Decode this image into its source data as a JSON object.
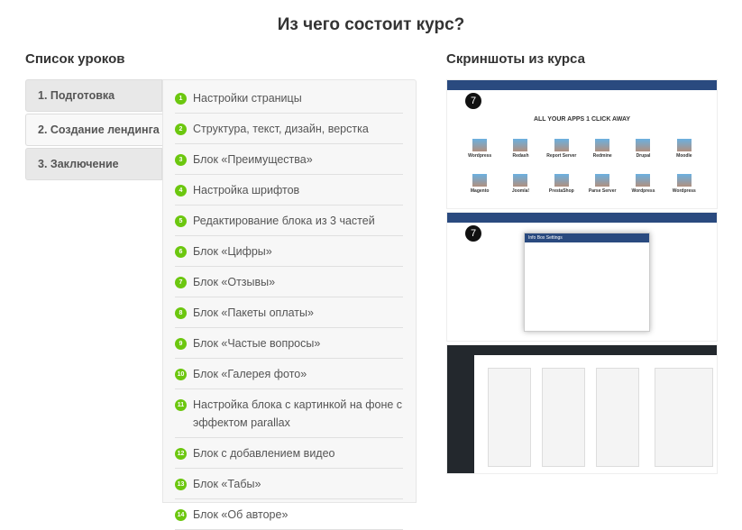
{
  "title": "Из чего состоит курс?",
  "lessons_heading": "Список уроков",
  "screens_heading": "Скриншоты из курса",
  "accent_color": "#6cc70f",
  "tabs": [
    {
      "label": "1. Подготовка",
      "active": false
    },
    {
      "label": "2. Создание лендинга",
      "active": true
    },
    {
      "label": "3. Заключение",
      "active": false
    }
  ],
  "lessons": [
    {
      "n": "1",
      "label": "Настройки страницы"
    },
    {
      "n": "2",
      "label": "Структура, текст, дизайн, верстка"
    },
    {
      "n": "3",
      "label": "Блок «Преимущества»"
    },
    {
      "n": "4",
      "label": "Настройка шрифтов"
    },
    {
      "n": "5",
      "label": "Редактирование блока из 3 частей"
    },
    {
      "n": "6",
      "label": "Блок «Цифры»"
    },
    {
      "n": "7",
      "label": "Блок «Отзывы»"
    },
    {
      "n": "8",
      "label": "Блок «Пакеты оплаты»"
    },
    {
      "n": "9",
      "label": "Блок «Частые вопросы»"
    },
    {
      "n": "10",
      "label": "Блок «Галерея фото»"
    },
    {
      "n": "11",
      "label": "Настройка блока с картинкой на фоне с эффектом parallax"
    },
    {
      "n": "12",
      "label": "Блок с добавлением видео"
    },
    {
      "n": "13",
      "label": "Блок «Табы»"
    },
    {
      "n": "14",
      "label": "Блок «Об авторе»"
    }
  ],
  "screenshot1": {
    "heading": "ALL YOUR APPS 1 CLICK AWAY",
    "apps": [
      "Wordpress",
      "Redash",
      "Report Server",
      "Redmine",
      "Drupal",
      "Moodle",
      "Magento",
      "Joomla!",
      "PrestaShop",
      "Parse Server",
      "Wordpress",
      "Wordpress"
    ]
  },
  "screenshot2": {
    "dialog_title": "Info Box Settings"
  }
}
